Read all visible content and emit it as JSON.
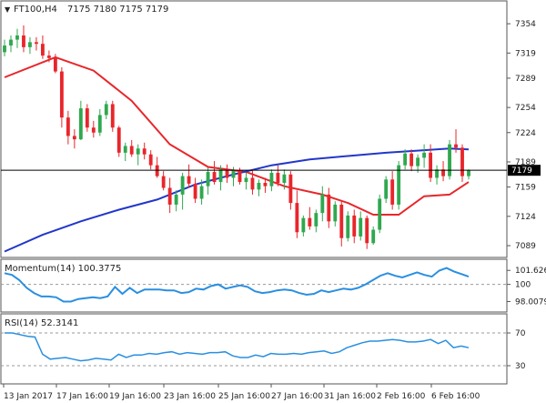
{
  "header": {
    "symbol": "FT100,H4",
    "ohlc": "7175 7180 7175 7179",
    "momentum_label": "Momentum(14) 100.3775",
    "rsi_label": "RSI(14) 52.3141"
  },
  "colors": {
    "bull": "#2fa84f",
    "bear": "#e8262b",
    "ma_fast": "#e8262b",
    "ma_slow": "#2237c9",
    "osc": "#2a8fe0",
    "grid": "#c8c8c8",
    "text": "#222222",
    "price_tag_bg": "#000000"
  },
  "current_price": {
    "value": 7179,
    "label": "7179"
  },
  "chart_data": [
    {
      "type": "candlestick",
      "panel": "price",
      "title": "FT100,H4",
      "ylim": [
        7076,
        7378
      ],
      "y_ticks": [
        "7354",
        "7319",
        "7289",
        "7254",
        "7224",
        "7189",
        "7159",
        "7124",
        "7089"
      ],
      "x_tick_labels": [
        "13 Jan 2017",
        "17 Jan 16:00",
        "19 Jan 16:00",
        "23 Jan 16:00",
        "25 Jan 16:00",
        "27 Jan 16:00",
        "31 Jan 16:00",
        "2 Feb 16:00",
        "6 Feb 16:00"
      ],
      "candles": [
        [
          7320,
          7335,
          7315,
          7328
        ],
        [
          7328,
          7340,
          7320,
          7335
        ],
        [
          7335,
          7348,
          7325,
          7340
        ],
        [
          7340,
          7352,
          7320,
          7326
        ],
        [
          7326,
          7338,
          7318,
          7332
        ],
        [
          7332,
          7338,
          7322,
          7330
        ],
        [
          7330,
          7340,
          7312,
          7316
        ],
        [
          7316,
          7322,
          7308,
          7313
        ],
        [
          7313,
          7318,
          7295,
          7297
        ],
        [
          7297,
          7302,
          7230,
          7242
        ],
        [
          7242,
          7250,
          7210,
          7220
        ],
        [
          7220,
          7228,
          7205,
          7216
        ],
        [
          7216,
          7262,
          7215,
          7253
        ],
        [
          7253,
          7258,
          7225,
          7230
        ],
        [
          7230,
          7238,
          7218,
          7224
        ],
        [
          7224,
          7252,
          7220,
          7245
        ],
        [
          7245,
          7262,
          7240,
          7258
        ],
        [
          7258,
          7262,
          7225,
          7230
        ],
        [
          7230,
          7232,
          7195,
          7200
        ],
        [
          7200,
          7212,
          7190,
          7208
        ],
        [
          7208,
          7215,
          7195,
          7198
        ],
        [
          7198,
          7210,
          7185,
          7205
        ],
        [
          7205,
          7212,
          7192,
          7198
        ],
        [
          7198,
          7203,
          7180,
          7185
        ],
        [
          7185,
          7195,
          7170,
          7172
        ],
        [
          7172,
          7178,
          7155,
          7158
        ],
        [
          7158,
          7170,
          7128,
          7138
        ],
        [
          7138,
          7155,
          7130,
          7150
        ],
        [
          7150,
          7176,
          7132,
          7172
        ],
        [
          7172,
          7186,
          7158,
          7163
        ],
        [
          7163,
          7170,
          7140,
          7145
        ],
        [
          7145,
          7168,
          7138,
          7160
        ],
        [
          7160,
          7182,
          7150,
          7177
        ],
        [
          7177,
          7190,
          7162,
          7165
        ],
        [
          7165,
          7185,
          7155,
          7180
        ],
        [
          7180,
          7186,
          7164,
          7170
        ],
        [
          7170,
          7183,
          7160,
          7178
        ],
        [
          7178,
          7182,
          7162,
          7165
        ],
        [
          7165,
          7176,
          7156,
          7170
        ],
        [
          7170,
          7180,
          7150,
          7156
        ],
        [
          7156,
          7168,
          7148,
          7164
        ],
        [
          7164,
          7170,
          7152,
          7160
        ],
        [
          7160,
          7180,
          7154,
          7176
        ],
        [
          7176,
          7185,
          7160,
          7164
        ],
        [
          7164,
          7180,
          7156,
          7174
        ],
        [
          7174,
          7178,
          7132,
          7140
        ],
        [
          7140,
          7155,
          7098,
          7105
        ],
        [
          7105,
          7125,
          7100,
          7122
        ],
        [
          7122,
          7135,
          7108,
          7112
        ],
        [
          7112,
          7132,
          7105,
          7128
        ],
        [
          7128,
          7160,
          7118,
          7150
        ],
        [
          7150,
          7158,
          7110,
          7118
        ],
        [
          7118,
          7142,
          7112,
          7138
        ],
        [
          7138,
          7142,
          7088,
          7098
        ],
        [
          7098,
          7130,
          7094,
          7125
        ],
        [
          7125,
          7132,
          7092,
          7100
        ],
        [
          7100,
          7130,
          7095,
          7122
        ],
        [
          7122,
          7125,
          7085,
          7092
        ],
        [
          7092,
          7112,
          7090,
          7108
        ],
        [
          7108,
          7150,
          7104,
          7145
        ],
        [
          7145,
          7172,
          7140,
          7168
        ],
        [
          7168,
          7178,
          7132,
          7138
        ],
        [
          7138,
          7190,
          7132,
          7185
        ],
        [
          7185,
          7204,
          7180,
          7199
        ],
        [
          7199,
          7204,
          7178,
          7184
        ],
        [
          7184,
          7198,
          7176,
          7194
        ],
        [
          7194,
          7210,
          7182,
          7200
        ],
        [
          7200,
          7210,
          7165,
          7170
        ],
        [
          7170,
          7185,
          7162,
          7180
        ],
        [
          7180,
          7190,
          7166,
          7172
        ],
        [
          7172,
          7215,
          7168,
          7210
        ],
        [
          7210,
          7228,
          7200,
          7206
        ],
        [
          7206,
          7210,
          7165,
          7172
        ],
        [
          7172,
          7180,
          7168,
          7179
        ]
      ],
      "series": [
        {
          "name": "",
          "kind": "ma_fast",
          "points": [
            [
              0,
              7290
            ],
            [
              8,
              7314
            ],
            [
              14,
              7298
            ],
            [
              20,
              7262
            ],
            [
              26,
              7210
            ],
            [
              32,
              7183
            ],
            [
              38,
              7177
            ],
            [
              44,
              7160
            ],
            [
              50,
              7150
            ],
            [
              54,
              7140
            ],
            [
              58,
              7126
            ],
            [
              62,
              7126
            ],
            [
              66,
              7148
            ],
            [
              70,
              7150
            ],
            [
              73,
              7165
            ]
          ]
        },
        {
          "name": "",
          "kind": "ma_slow",
          "points": [
            [
              0,
              7082
            ],
            [
              6,
              7102
            ],
            [
              12,
              7118
            ],
            [
              18,
              7132
            ],
            [
              24,
              7144
            ],
            [
              30,
              7162
            ],
            [
              36,
              7174
            ],
            [
              42,
              7185
            ],
            [
              48,
              7192
            ],
            [
              54,
              7196
            ],
            [
              60,
              7200
            ],
            [
              66,
              7203
            ],
            [
              70,
              7205
            ],
            [
              73,
              7204
            ]
          ]
        }
      ]
    },
    {
      "type": "line",
      "panel": "momentum",
      "title": "Momentum(14) 100.3775",
      "ylim": [
        97.0,
        102.6
      ],
      "y_ticks": [
        "101.6268",
        "100",
        "98.0079"
      ],
      "reference_level": 100,
      "series": [
        {
          "name": "Momentum(14)",
          "values": [
            101.3,
            101.1,
            100.5,
            99.6,
            99.0,
            98.6,
            98.6,
            98.5,
            98.0,
            98.0,
            98.3,
            98.4,
            98.5,
            98.4,
            98.6,
            99.7,
            98.9,
            99.6,
            99.0,
            99.4,
            99.4,
            99.4,
            99.3,
            99.3,
            99.0,
            99.1,
            99.5,
            99.4,
            99.8,
            100.0,
            99.5,
            99.7,
            99.9,
            99.7,
            99.2,
            99.0,
            99.1,
            99.3,
            99.4,
            99.3,
            99.0,
            98.8,
            98.9,
            99.3,
            99.1,
            99.3,
            99.5,
            99.4,
            99.6,
            100.0,
            100.5,
            101.0,
            101.3,
            101.0,
            100.8,
            101.1,
            101.4,
            101.1,
            100.9,
            101.6,
            101.9,
            101.5,
            101.2,
            100.9
          ]
        }
      ]
    },
    {
      "type": "line",
      "panel": "rsi",
      "title": "RSI(14) 52.3141",
      "ylim": [
        10,
        90
      ],
      "y_ticks": [
        "70",
        "30"
      ],
      "levels": [
        70,
        30
      ],
      "series": [
        {
          "name": "RSI(14)",
          "values": [
            70,
            70,
            68,
            66,
            65,
            44,
            38,
            39,
            40,
            38,
            36,
            37,
            39,
            38,
            37,
            44,
            40,
            43,
            43,
            45,
            44,
            46,
            47,
            44,
            46,
            45,
            44,
            46,
            46,
            47,
            42,
            40,
            40,
            43,
            41,
            45,
            44,
            44,
            45,
            44,
            46,
            47,
            48,
            45,
            47,
            52,
            55,
            58,
            60,
            60,
            61,
            62,
            61,
            59,
            59,
            60,
            62,
            57,
            61,
            52,
            54,
            52
          ]
        }
      ]
    }
  ]
}
